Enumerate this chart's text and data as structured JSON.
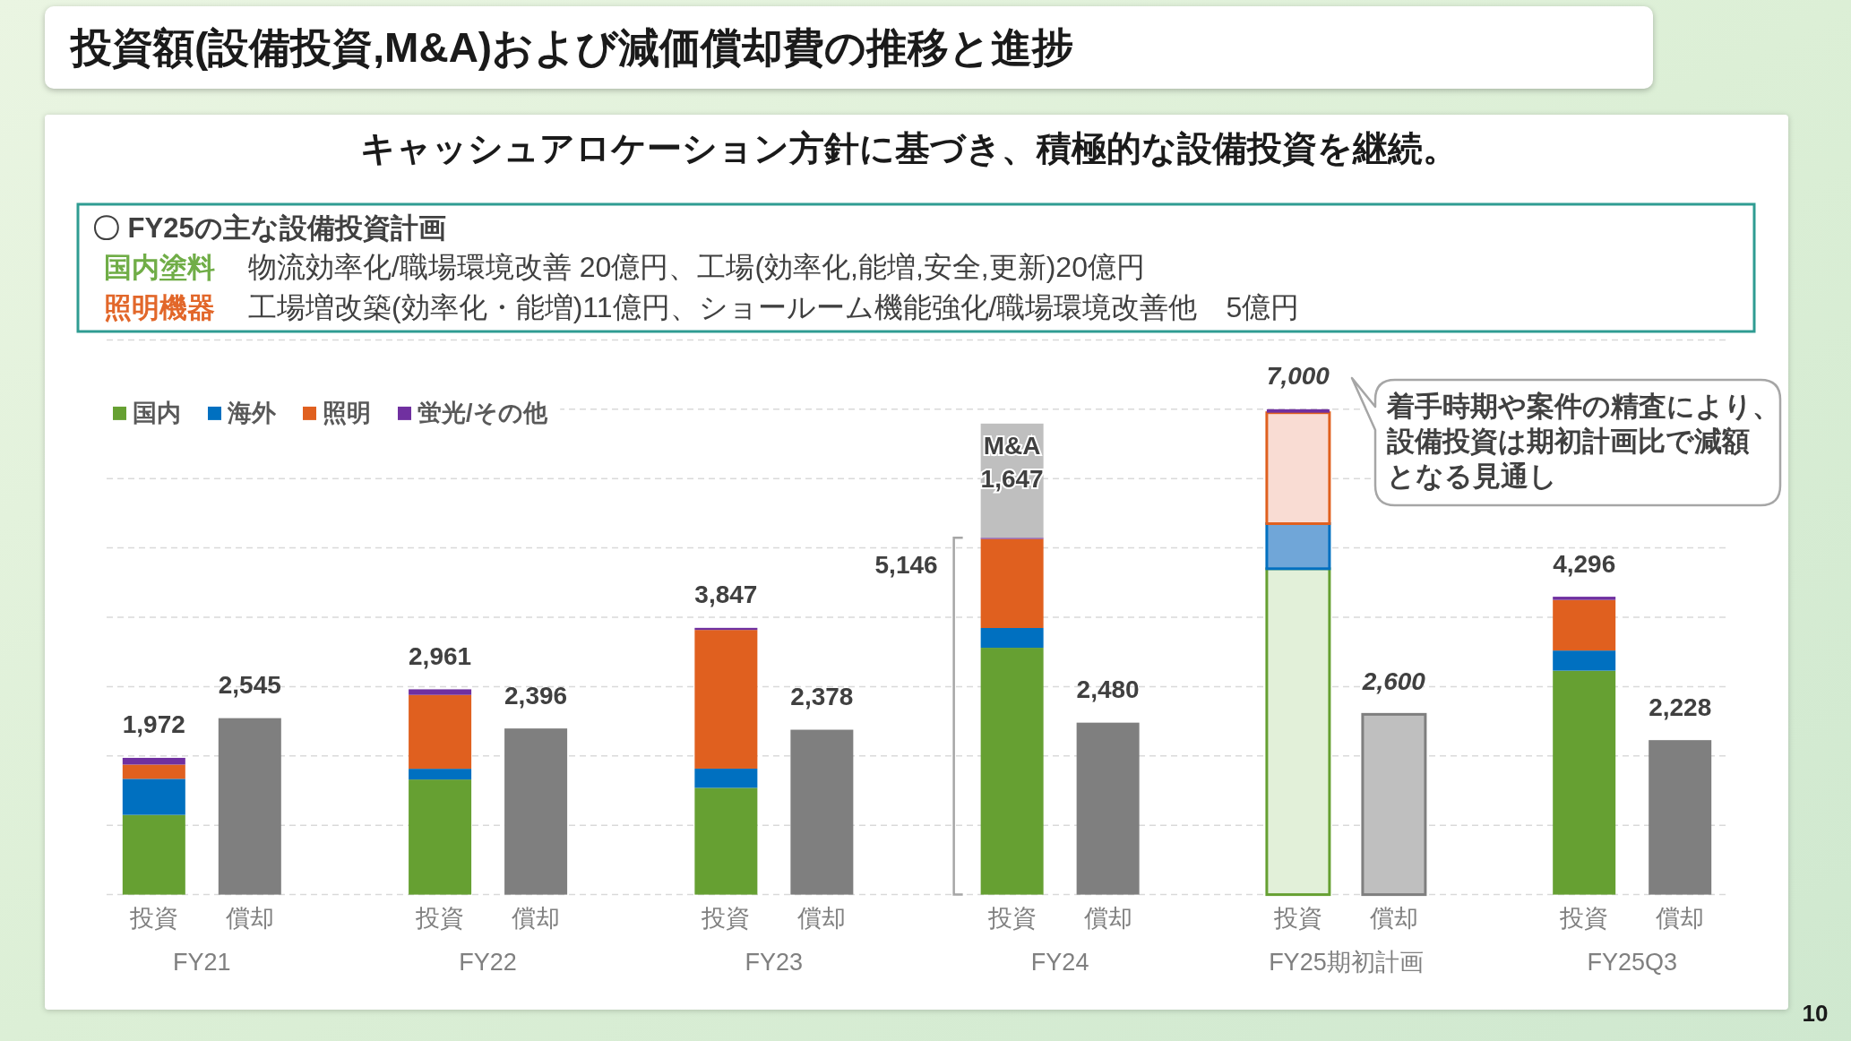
{
  "chart_data": {
    "type": "bar",
    "title": "投資額(設備投資,M&A)および減価償却費の推移と進捗",
    "subtitle": "キャッシュアロケーション方針に基づき、積極的な設備投資を継続。",
    "categories": [
      "投資",
      "償却",
      "投資",
      "償却",
      "投資",
      "償却",
      "投資",
      "償却",
      "投資",
      "償却",
      "投資",
      "償却"
    ],
    "stacked": true,
    "series": [
      {
        "name": "国内",
        "color": "#66a032",
        "values": [
          1150,
          null,
          1660,
          null,
          1540,
          null,
          3560,
          null,
          4700,
          null,
          3230,
          null
        ],
        "colors": [
          "#66a032",
          null,
          "#66a032",
          null,
          "#66a032",
          null,
          "#66a032",
          null,
          "#e2f0d9",
          null,
          "#66a032",
          null
        ]
      },
      {
        "name": "海外",
        "color": "#0070c0",
        "values": [
          520,
          null,
          155,
          null,
          277,
          null,
          285,
          null,
          650,
          null,
          290,
          null
        ],
        "colors": [
          "#0070c0",
          null,
          "#0070c0",
          null,
          "#0070c0",
          null,
          "#0070c0",
          null,
          "#70a6d8",
          null,
          "#0070c0",
          null
        ]
      },
      {
        "name": "照明",
        "color": "#e0601f",
        "values": [
          205,
          null,
          1065,
          null,
          2000,
          null,
          1285,
          null,
          1600,
          null,
          730,
          null
        ],
        "colors": [
          "#e0601f",
          null,
          "#e0601f",
          null,
          "#e0601f",
          null,
          "#e0601f",
          null,
          "#f9dcd3",
          null,
          "#e0601f",
          null
        ]
      },
      {
        "name": "蛍光/その他",
        "color": "#7030a0",
        "values": [
          97,
          null,
          81,
          null,
          30,
          null,
          16,
          null,
          50,
          null,
          46,
          null
        ]
      },
      {
        "name": "M&A",
        "color": "#bfbfbf",
        "values": [
          null,
          null,
          null,
          null,
          null,
          null,
          1647,
          null,
          null,
          null,
          null,
          null
        ],
        "value_labels": [
          null,
          null,
          null,
          null,
          null,
          null,
          "1,647",
          null,
          null,
          null,
          null,
          null
        ]
      },
      {
        "color": "#7f7f7f",
        "values": [
          null,
          2545,
          null,
          2396,
          null,
          2378,
          null,
          2480,
          null,
          2600,
          null,
          2228
        ],
        "colors": [
          null,
          "#7f7f7f",
          null,
          "#7f7f7f",
          null,
          "#7f7f7f",
          null,
          "#7f7f7f",
          null,
          "#bfbfbf",
          null,
          "#7f7f7f"
        ],
        "value_labels": [
          null,
          "2,545",
          null,
          "2,396",
          null,
          "2,378",
          null,
          "2,480",
          null,
          "2,600",
          null,
          "2,228"
        ]
      }
    ],
    "totals": [
      "1,972",
      null,
      "2,961",
      null,
      "3,847",
      null,
      null,
      null,
      "7,000",
      null,
      "4,296",
      null
    ],
    "ylim": [
      0,
      8000
    ],
    "yticks": [
      {
        "value": 0,
        "label": null
      },
      {
        "value": 1000,
        "label": null
      },
      {
        "value": 2000,
        "label": null
      },
      {
        "value": 3000,
        "label": null
      },
      {
        "value": 4000,
        "label": null
      },
      {
        "value": 5000,
        "label": null
      },
      {
        "value": 6000,
        "label": null
      },
      {
        "value": 7000,
        "label": null
      },
      {
        "value": 8000,
        "label": null
      }
    ],
    "grid": "y",
    "legend": "top left",
    "tick_labels": "x",
    "annotations": [
      "FY21",
      "FY22",
      "FY23",
      "FY24",
      "FY25期初計画",
      "FY25Q3",
      "〇 FY25の主な設備投資計画",
      "国内塗料",
      "物流効率化/職場環境改善 20億円、工場(効率化,能増,安全,更新)20億円",
      "照明機器",
      "工場増改築(効率化・能増)11億円、ショールーム機能強化/職場環境改善他　5億円",
      "着手時期や案件の精査により、設備投資は期初計画比で減額となる見通し",
      "10",
      "5,146"
    ]
  }
}
